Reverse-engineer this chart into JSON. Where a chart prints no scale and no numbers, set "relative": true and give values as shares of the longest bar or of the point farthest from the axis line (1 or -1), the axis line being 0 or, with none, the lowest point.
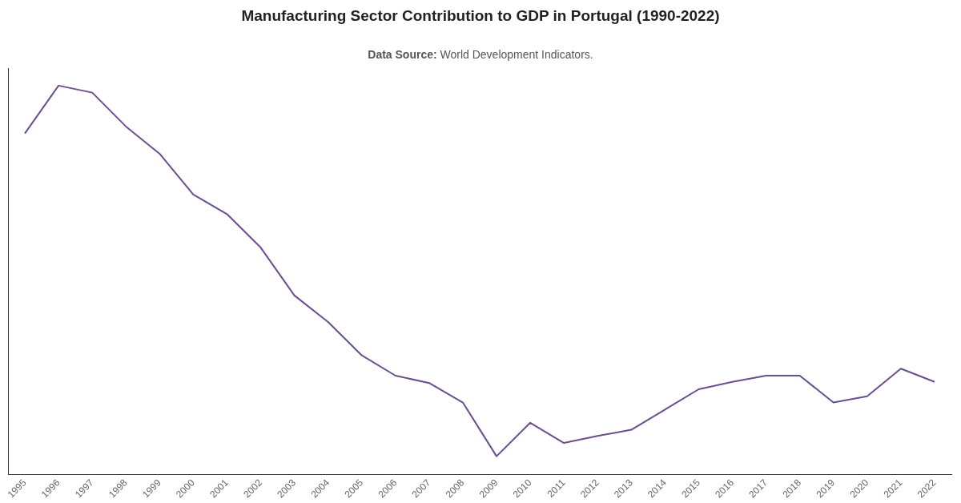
{
  "chart_data": {
    "type": "line",
    "title": "Manufacturing Sector Contribution to GDP in Portugal (1990-2022)",
    "annotations": [
      "Data Source: World Development Indicators."
    ],
    "relative": true,
    "grid": false,
    "legend": false,
    "marker": "none",
    "line_style": "solid",
    "categories": [
      "1995",
      "1996",
      "1997",
      "1998",
      "1999",
      "2000",
      "2001",
      "2002",
      "2003",
      "2004",
      "2005",
      "2006",
      "2007",
      "2008",
      "2009",
      "2010",
      "2011",
      "2012",
      "2013",
      "2014",
      "2015",
      "2016",
      "2017",
      "2018",
      "2019",
      "2020",
      "2021",
      "2022"
    ],
    "series": [
      {
        "color": "#6a4c9c",
        "values": [
          0.877,
          1,
          0.982,
          0.895,
          0.825,
          0.72,
          0.67,
          0.584,
          0.461,
          0.393,
          0.307,
          0.255,
          0.236,
          0.186,
          0.048,
          0.134,
          0.082,
          0.1,
          0.116,
          0.168,
          0.22,
          0.239,
          0.255,
          0.255,
          0.186,
          0.202,
          0.273,
          0.239
        ]
      }
    ]
  }
}
